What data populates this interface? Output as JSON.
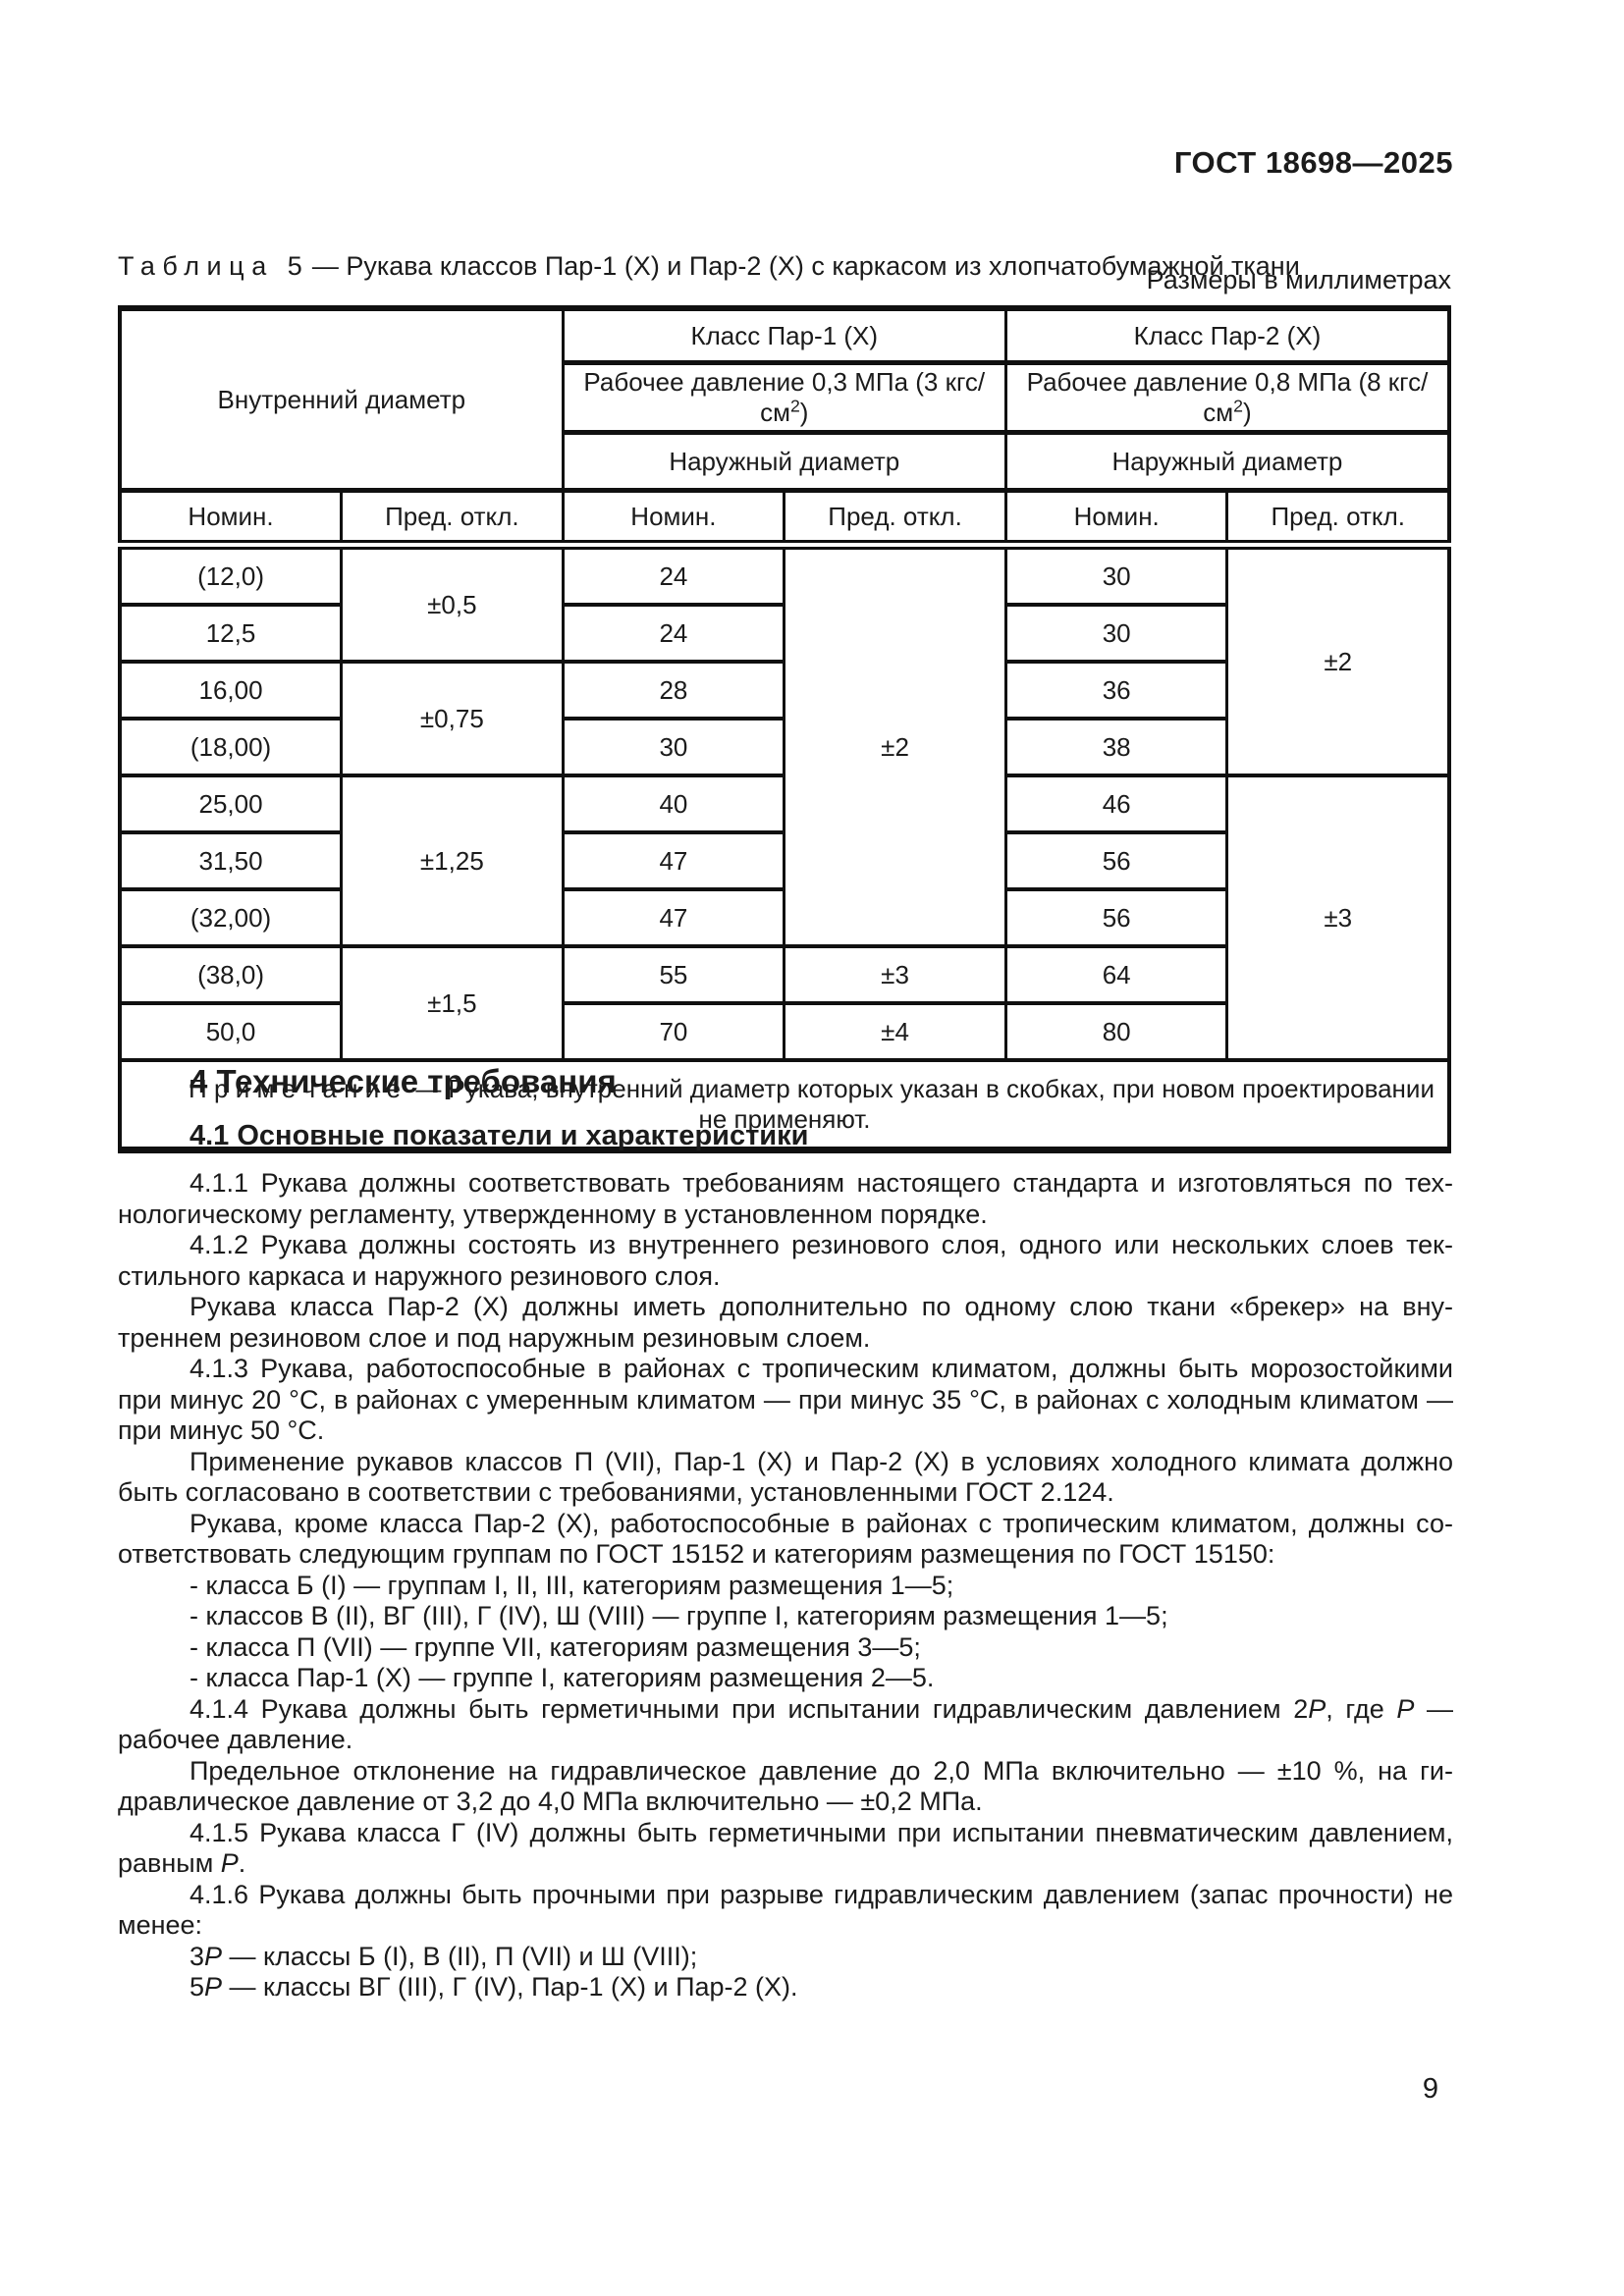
{
  "page": {
    "doc_code": "ГОСТ 18698—2025",
    "page_number": "9"
  },
  "table5": {
    "caption_word": "Таблица",
    "caption_num": "5",
    "caption_rest": "— Рукава классов Пар-1 (Х) и Пар-2 (Х) с каркасом из хлопчатобумажной ткани",
    "units": "Размеры в миллиметрах",
    "head": {
      "inner": "Внутренний диаметр",
      "class1": "Класс Пар-1 (Х)",
      "class2": "Класс Пар-2 (Х)",
      "pressure1": "Рабочее давление 0,3 МПа (3 кгс/см",
      "pressure2": "Рабочее давление 0,8 МПа (8 кгс/см",
      "sup": "2",
      "paren": ")",
      "outer": "Наружный диаметр",
      "nominal": "Номин.",
      "deviation": "Пред. откл."
    },
    "rows": [
      {
        "nom": "(12,0)",
        "dev": {
          "v": "±0,5"
        },
        "p1n": "24",
        "p1d": {
          "v": "±2"
        },
        "p2n": "30",
        "p2d": {
          "v": "±2"
        }
      },
      {
        "nom": "12,5",
        "p1n": "24",
        "p2n": "30"
      },
      {
        "nom": "16,00",
        "dev": {
          "v": "±0,75"
        },
        "p1n": "28",
        "p2n": "36"
      },
      {
        "nom": "(18,00)",
        "p1n": "30",
        "p2n": "38"
      },
      {
        "nom": "25,00",
        "dev": {
          "v": "±1,25"
        },
        "p1n": "40",
        "p2n": "46",
        "p2d": {
          "v": "±3"
        }
      },
      {
        "nom": "31,50",
        "p1n": "47",
        "p2n": "56"
      },
      {
        "nom": "(32,00)",
        "p1n": "47",
        "p2n": "56"
      },
      {
        "nom": "(38,0)",
        "dev": {
          "v": "±1,5"
        },
        "p1n": "55",
        "p1d": {
          "v": "±3"
        },
        "p2n": "64"
      },
      {
        "nom": "50,0",
        "p1n": "70",
        "p1d": {
          "v": "±4"
        },
        "p2n": "80"
      }
    ],
    "note_word": "Примечание",
    "note_rest": "— Рукава, внутренний диаметр которых указан в скобках, при новом проектировании не применяют."
  },
  "section4": {
    "heading": "4 Технические требования",
    "subheading": "4.1 Основные показатели и характеристики",
    "p411": "4.1.1 Рукава должны соответствовать требованиям настоящего стандарта и изготовляться по тех­нологическому регламенту, утвержденному в установленном порядке.",
    "p412": "4.1.2 Рукава должны состоять из внутреннего резинового слоя, одного или нескольких слоев тек­стильного каркаса и наружного резинового слоя.",
    "p412b": "Рукава класса Пар-2 (Х) должны иметь дополнительно по одному слою ткани «брекер» на вну­треннем резиновом слое и под наружным резиновым слоем.",
    "p413": "4.1.3 Рукава, работоспособные в районах с тропическим климатом, должны быть морозостойкими при минус 20 °С, в районах с умеренным климатом — при минус 35 °С, в районах с холодным клима­том — при минус 50 °С.",
    "p413b": "Применение рукавов классов П (VII), Пар-1 (Х) и Пар-2 (Х) в условиях холодного климата должно быть согласовано в соответствии с требованиями, установленными ГОСТ 2.124.",
    "p413c": "Рукава, кроме класса Пар-2 (Х), работоспособные в районах с тропическим климатом, должны со­ответствовать следующим группам по ГОСТ 15152 и категориям размещения по ГОСТ 15150:",
    "li1": "- класса Б (I) — группам I, II, III, категориям размещения 1—5;",
    "li2": "- классов В (II), ВГ (III), Г (IV), Ш (VIII) — группе I, категориям размещения 1—5;",
    "li3": "- класса П (VII) — группе VII, категориям размещения 3—5;",
    "li4": "- класса Пар-1 (Х) — группе I, категориям размещения 2—5.",
    "p414": [
      {
        "t": "4.1.4 Рукава должны быть герметичными при испытании гидравлическим давлением 2"
      },
      {
        "t": "P",
        "i": true
      },
      {
        "t": ", где "
      },
      {
        "t": "P",
        "i": true
      },
      {
        "t": " — рабочее давление."
      }
    ],
    "p414b": "Предельное отклонение на гидравлическое давление до 2,0 МПа включительно — ±10 %, на ги­дравлическое давление от 3,2 до 4,0 МПа включительно — ±0,2 МПа.",
    "p415": [
      {
        "t": "4.1.5 Рукава класса Г (IV) должны быть герметичными при испытании пневматическим давлением, равным "
      },
      {
        "t": "P",
        "i": true
      },
      {
        "t": "."
      }
    ],
    "p416": "4.1.6 Рукава должны быть прочными при разрыве гидравлическим давлением (запас прочности) не менее:",
    "p416a": [
      {
        "t": "3"
      },
      {
        "t": "P",
        "i": true
      },
      {
        "t": " — классы Б (I), В (II), П (VII) и Ш (VIII);"
      }
    ],
    "p416b": [
      {
        "t": "5"
      },
      {
        "t": "P",
        "i": true
      },
      {
        "t": " — классы ВГ (III), Г (IV), Пар-1 (Х) и Пар-2 (Х)."
      }
    ]
  }
}
